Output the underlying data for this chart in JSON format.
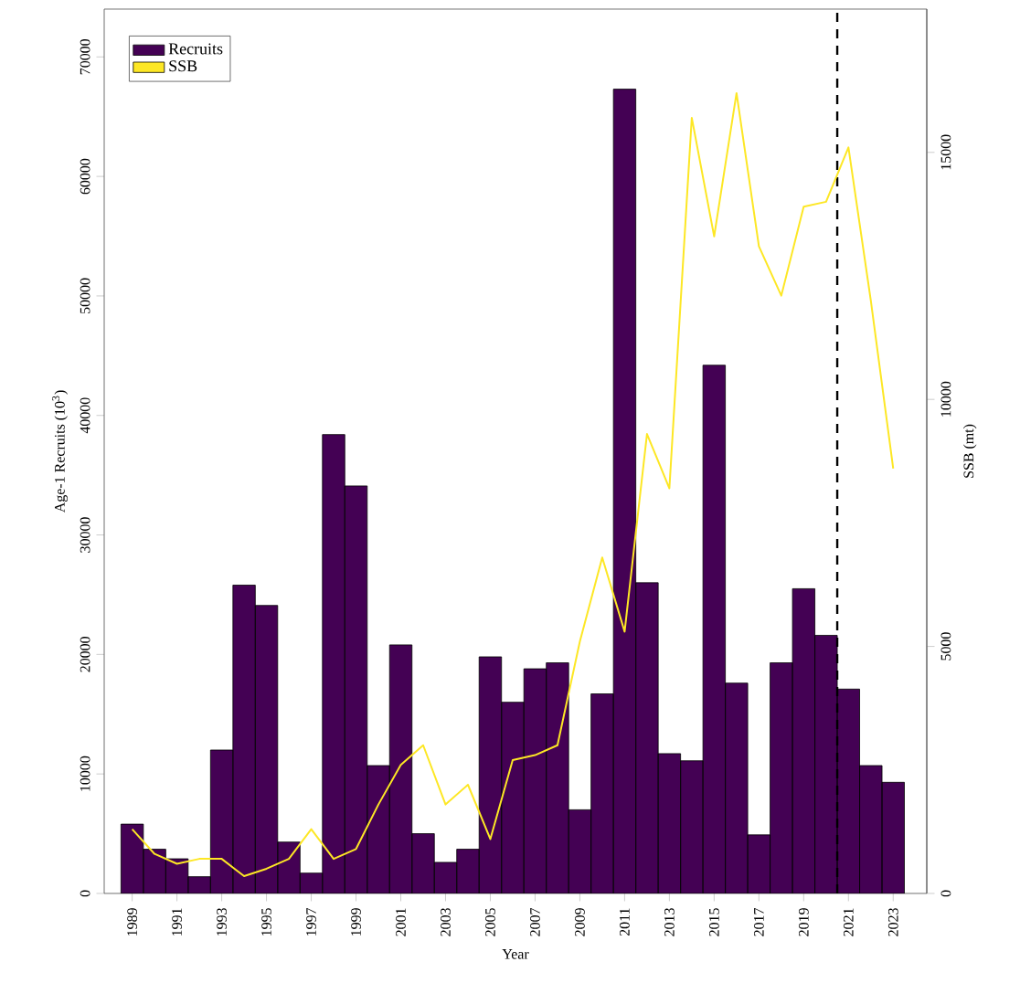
{
  "chart_data": {
    "type": "bar",
    "xlabel": "Year",
    "ylabel": "Age-1 Recruits (10$^{3}$)",
    "y2label": "SSB (mt)",
    "x": [
      1989,
      1990,
      1991,
      1992,
      1993,
      1994,
      1995,
      1996,
      1997,
      1998,
      1999,
      2000,
      2001,
      2002,
      2003,
      2004,
      2005,
      2006,
      2007,
      2008,
      2009,
      2010,
      2011,
      2012,
      2013,
      2014,
      2015,
      2016,
      2017,
      2018,
      2019,
      2020,
      2021,
      2022,
      2023
    ],
    "series": [
      {
        "name": "Recruits",
        "color": "#440154",
        "values": [
          5800,
          3700,
          2900,
          1400,
          12000,
          25800,
          24100,
          4300,
          1700,
          38400,
          34100,
          10700,
          20800,
          5000,
          2600,
          3700,
          19800,
          16000,
          18800,
          19300,
          7000,
          16700,
          67300,
          26000,
          11700,
          11100,
          44200,
          17600,
          4900,
          19300,
          25500,
          21600,
          17100,
          10700,
          9300
        ]
      },
      {
        "name": "SSB",
        "type": "line",
        "axis": "y2",
        "color": "#fde725",
        "values": [
          1300,
          800,
          600,
          700,
          700,
          350,
          500,
          700,
          1300,
          700,
          900,
          1800,
          2600,
          3000,
          1800,
          2200,
          1100,
          2700,
          2800,
          3000,
          5100,
          6800,
          5300,
          9300,
          8200,
          15700,
          13300,
          16200,
          13100,
          12100,
          13900,
          14000,
          15100,
          12000,
          8600
        ]
      }
    ],
    "xlim": [
      1987.75,
      2024.5
    ],
    "xticks": [
      1989,
      1991,
      1993,
      1995,
      1997,
      1999,
      2001,
      2003,
      2005,
      2007,
      2009,
      2011,
      2013,
      2015,
      2017,
      2019,
      2021,
      2023
    ],
    "ylim": [
      0,
      74000
    ],
    "yticks": [
      0,
      10000,
      20000,
      30000,
      40000,
      50000,
      60000,
      70000
    ],
    "y2lim": [
      0,
      17900
    ],
    "y2ticks": [
      0,
      5000,
      10000,
      15000
    ],
    "ref_lines": [
      {
        "axis": "x",
        "value": 2020.5,
        "color": "#000000",
        "line_style": "dashed"
      }
    ],
    "legend": "top left",
    "grid": false
  }
}
